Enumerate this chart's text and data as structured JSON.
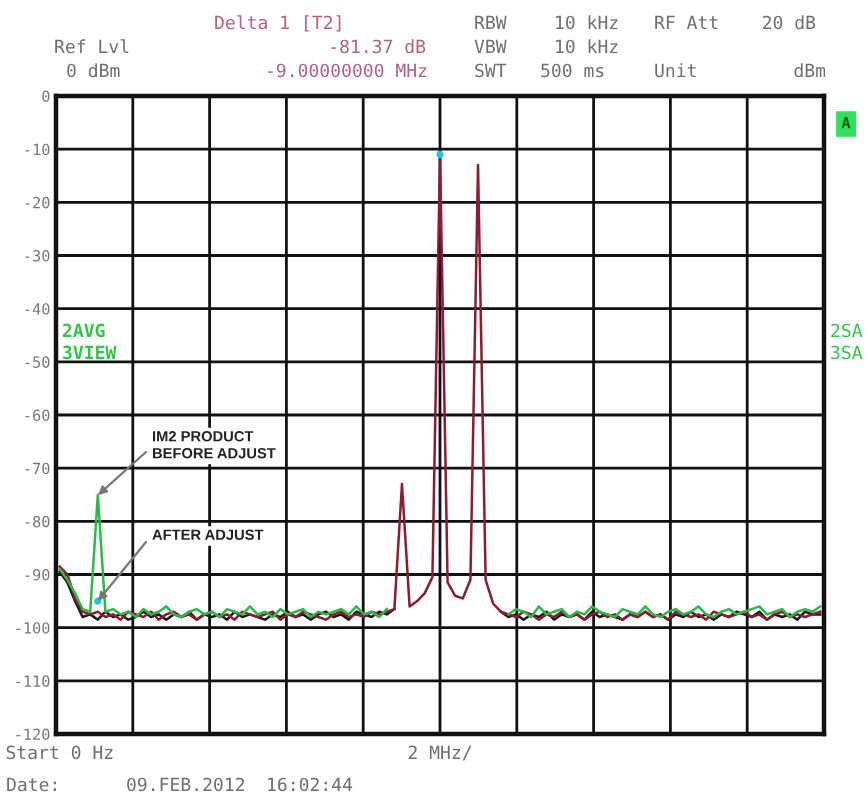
{
  "chart_data": {
    "type": "line",
    "line_style": "solid",
    "grid": true,
    "categories": [
      "Start 0 Hz",
      null,
      null,
      null,
      null,
      null,
      null,
      null,
      null,
      null,
      null,
      null,
      null,
      null,
      null,
      null,
      null,
      null,
      null,
      null,
      null,
      null,
      null,
      null,
      null,
      null,
      null,
      null,
      null,
      null,
      null,
      null,
      null,
      null,
      null,
      null,
      null,
      null,
      null,
      null,
      null,
      null,
      null,
      null,
      null,
      null,
      null,
      null,
      null,
      null,
      "2 MHz/",
      null,
      null,
      null,
      null,
      null,
      null,
      null,
      null,
      null,
      null,
      null,
      null,
      null,
      null,
      null,
      null,
      null,
      null,
      null,
      null,
      null,
      null,
      null,
      null,
      null,
      null,
      null,
      null,
      null,
      null,
      null,
      null,
      null,
      null,
      null,
      null,
      null,
      null,
      null,
      null,
      null,
      null,
      null,
      null,
      null,
      null,
      null,
      null,
      null,
      null
    ],
    "ylim": [
      -120,
      0
    ],
    "yticks": [
      0,
      -10,
      -20,
      -30,
      -40,
      -50,
      -60,
      -70,
      -80,
      -90,
      -100,
      -110,
      -120
    ],
    "series": [
      {
        "color": "#1a1a1a",
        "values": [
          -89.5,
          -91.5,
          -95,
          -98,
          -97.5,
          -98.5,
          -97,
          -98,
          -97.5,
          -98.5,
          -98,
          -97,
          -98,
          -97.5,
          -98.5,
          -97.5,
          -98,
          -97,
          -98.5,
          -97.5,
          -98,
          -97.5,
          -98.5,
          -97,
          -98,
          -97.5,
          -98,
          -98.5,
          -97.5,
          -98,
          -97,
          -98,
          -97.5,
          -98.5,
          -97.5,
          -97,
          -98,
          -97.5,
          -98.5,
          -97,
          -97.5,
          -98,
          -97,
          -97.5,
          -96.5,
          null,
          null,
          null,
          null,
          null,
          null,
          null,
          null,
          null,
          null,
          null,
          null,
          null,
          -97,
          -98,
          -97.5,
          -98.5,
          -97.5,
          -98,
          -97,
          -98.5,
          -97.5,
          -98,
          -97.5,
          -98.5,
          -97,
          -98,
          -97.5,
          -98,
          -98.5,
          -97.5,
          -98,
          -97,
          -98,
          -97.5,
          -98.5,
          -97.5,
          -98,
          -97,
          -98,
          -97.5,
          -98.5,
          -97.5,
          -98,
          -97,
          -97.5,
          -98,
          -97,
          -98.5,
          -97.5,
          -98,
          -97.5,
          -98.5,
          -97,
          -97.5,
          -97.5
        ]
      },
      {
        "color": "#8c1c32",
        "values": [
          -88.5,
          -90,
          -94.5,
          -97,
          -97.5,
          -97,
          -98,
          -97.5,
          -98.5,
          -97,
          -97.5,
          -98,
          -97,
          -98.5,
          -97.5,
          -97,
          -98,
          -97.5,
          -98.5,
          -97.5,
          -97,
          -98,
          -97.5,
          -98.5,
          -97,
          -97.5,
          -98,
          -97.5,
          -97,
          -98.5,
          -97.5,
          -98,
          -97,
          -97.5,
          -98,
          -98.5,
          -97.5,
          -97,
          -98,
          -97.5,
          -98,
          -97,
          -97.5,
          -97,
          -96.5,
          -73,
          -96,
          -95,
          -93.5,
          -90.5,
          -11,
          -91.5,
          -94,
          -94.5,
          -91,
          -13,
          -91,
          -95.5,
          -97,
          -97.5,
          -98,
          -97,
          -97.5,
          -98.5,
          -97.5,
          -98,
          -97,
          -98,
          -97.5,
          -98.5,
          -97.5,
          -97,
          -98,
          -97.5,
          -98.5,
          -97.5,
          -98,
          -97,
          -98,
          -97.5,
          -98.5,
          -97,
          -97.5,
          -98,
          -97.5,
          -98.5,
          -97,
          -97.5,
          -98,
          -97.5,
          -97,
          -98,
          -97.5,
          -98.5,
          -97.5,
          -97,
          -98,
          -97.5,
          -98,
          -97.5,
          -97
        ]
      },
      {
        "color": "#2fb84a",
        "values": [
          -89,
          -91,
          -93.5,
          -96.5,
          -97,
          -75,
          -97,
          -96.5,
          -97.5,
          -97,
          -98,
          -96.5,
          -97.5,
          -97,
          -96,
          -97.5,
          -98,
          -97,
          -96.5,
          -97.5,
          -97,
          -98,
          -96.5,
          -97,
          -97.5,
          -96,
          -97.5,
          -97,
          -98,
          -96.5,
          -97.5,
          -97,
          -96.5,
          -98,
          -97,
          -97.5,
          -97,
          -96.5,
          -97.5,
          -96,
          -97.5,
          -97,
          -98,
          -96.5,
          null,
          null,
          null,
          null,
          null,
          null,
          null,
          null,
          null,
          null,
          null,
          null,
          null,
          null,
          null,
          -97.5,
          -96.5,
          -97,
          -98,
          -96,
          -97.5,
          -97,
          -96.5,
          -98,
          -97,
          -97.5,
          -96,
          -97,
          -97.5,
          -98,
          -96.5,
          -97,
          -97.5,
          -96,
          -97.5,
          -98,
          -97,
          -96.5,
          -97.5,
          -97,
          -96,
          -97.5,
          -98,
          -97,
          -96.5,
          -97.5,
          -97,
          -96.5,
          -96,
          -97.5,
          -97,
          -96.5,
          -98,
          -97,
          -96.5,
          -97,
          -96
        ]
      },
      {
        "type": "scatter",
        "marker": "circle",
        "color": "#22c8d0",
        "values": [
          null,
          null,
          null,
          null,
          null,
          -95,
          null,
          null,
          null,
          null,
          null,
          null,
          null,
          null,
          null,
          null,
          null,
          null,
          null,
          null,
          null,
          null,
          null,
          null,
          null,
          null,
          null,
          null,
          null,
          null,
          null,
          null,
          null,
          null,
          null,
          null,
          null,
          null,
          null,
          null,
          null,
          null,
          null,
          null,
          null,
          null,
          null,
          null,
          null,
          null,
          -11,
          null,
          null,
          null,
          null,
          null,
          null,
          null,
          null,
          null,
          null,
          null,
          null,
          null,
          null,
          null,
          null,
          null,
          null,
          null,
          null,
          null,
          null,
          null,
          null,
          null,
          null,
          null,
          null,
          null,
          null,
          null,
          null,
          null,
          null,
          null,
          null,
          null,
          null,
          null,
          null,
          null,
          null,
          null,
          null,
          null,
          null,
          null,
          null,
          null,
          null
        ]
      }
    ],
    "annotations": [
      "Delta 1 [T2]",
      "Ref Lvl",
      "-81.37 dB",
      "0 dBm",
      "-9.00000000 MHz",
      "RBW",
      "10 kHz",
      "RF Att",
      "20 dB",
      "VBW",
      "10 kHz",
      "SWT",
      "500 ms",
      "Unit",
      "dBm",
      "A",
      "2AVG",
      "3VIEW",
      "2SA",
      "3SA",
      "IM2 PRODUCT\nBEFORE ADJUST",
      "AFTER ADJUST",
      "Date:",
      "09.FEB.2012",
      "16:02:44"
    ]
  }
}
